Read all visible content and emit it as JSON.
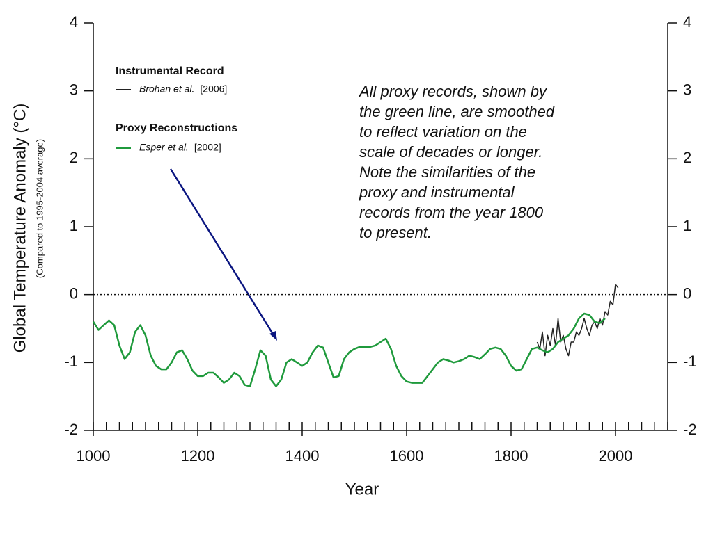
{
  "chart_data": {
    "type": "line",
    "ylabel": "Global Temperature Anomaly (°C)",
    "ylabel_note": "(Compared to 1995-2004 average)",
    "xlabel": "Year",
    "xlim": [
      1000,
      2100
    ],
    "xticks": [
      1000,
      1200,
      1400,
      1600,
      1800,
      2000
    ],
    "xticks_minor": [
      1000,
      1025,
      1050,
      1075,
      1100,
      1125,
      1150,
      1175,
      1200,
      1225,
      1250,
      1275,
      1300,
      1325,
      1350,
      1375,
      1400,
      1425,
      1450,
      1475,
      1500,
      1525,
      1550,
      1575,
      1600,
      1625,
      1650,
      1675,
      1700,
      1725,
      1750,
      1775,
      1800,
      1825,
      1850,
      1875,
      1900,
      1925,
      1950,
      1975,
      2000,
      2025,
      2050,
      2075,
      2100
    ],
    "ylim": [
      -2,
      4
    ],
    "yticks": [
      -2,
      -1,
      0,
      1,
      2,
      3,
      4
    ],
    "y2lim": [
      -2,
      4
    ],
    "y2ticks": [
      -2,
      -1,
      0,
      1,
      2,
      3,
      4
    ],
    "reference_line": 0,
    "legend_groups": [
      "Instrumental Record",
      "Proxy Reconstructions"
    ],
    "annotation": [
      "All proxy records, shown by",
      "the green line, are smoothed",
      "to reflect variation on the",
      "scale of decades or longer.",
      "Note the similarities of the",
      "proxy and instrumental",
      "records from the year 1800",
      "to present."
    ],
    "series": [
      {
        "name": "Brohan et al.",
        "citation": "[2006]",
        "color": "#222222",
        "x": [
          1850,
          1855,
          1860,
          1865,
          1870,
          1875,
          1880,
          1885,
          1890,
          1895,
          1900,
          1905,
          1910,
          1915,
          1920,
          1925,
          1930,
          1935,
          1940,
          1945,
          1950,
          1955,
          1960,
          1965,
          1970,
          1975,
          1980,
          1985,
          1990,
          1995,
          2000,
          2005
        ],
        "values": [
          -0.7,
          -0.8,
          -0.55,
          -0.9,
          -0.6,
          -0.75,
          -0.5,
          -0.75,
          -0.35,
          -0.7,
          -0.6,
          -0.8,
          -0.9,
          -0.7,
          -0.7,
          -0.55,
          -0.6,
          -0.5,
          -0.35,
          -0.5,
          -0.6,
          -0.45,
          -0.4,
          -0.5,
          -0.35,
          -0.45,
          -0.25,
          -0.3,
          -0.1,
          -0.15,
          0.15,
          0.1
        ]
      },
      {
        "name": "Esper et al.",
        "citation": "[2002]",
        "color": "#1f9a3c",
        "x": [
          1000,
          1010,
          1020,
          1030,
          1040,
          1050,
          1060,
          1070,
          1080,
          1090,
          1100,
          1110,
          1120,
          1130,
          1140,
          1150,
          1160,
          1170,
          1180,
          1190,
          1200,
          1210,
          1220,
          1230,
          1240,
          1250,
          1260,
          1270,
          1280,
          1290,
          1300,
          1310,
          1320,
          1330,
          1340,
          1350,
          1360,
          1370,
          1380,
          1390,
          1400,
          1410,
          1420,
          1430,
          1440,
          1450,
          1460,
          1470,
          1480,
          1490,
          1500,
          1510,
          1520,
          1530,
          1540,
          1550,
          1560,
          1570,
          1580,
          1590,
          1600,
          1610,
          1620,
          1630,
          1640,
          1650,
          1660,
          1670,
          1680,
          1690,
          1700,
          1710,
          1720,
          1730,
          1740,
          1750,
          1760,
          1770,
          1780,
          1790,
          1800,
          1810,
          1820,
          1830,
          1840,
          1850,
          1860,
          1870,
          1880,
          1890,
          1900,
          1910,
          1920,
          1930,
          1940,
          1950,
          1960,
          1970,
          1980
        ],
        "values": [
          -0.4,
          -0.52,
          -0.45,
          -0.38,
          -0.45,
          -0.75,
          -0.95,
          -0.85,
          -0.55,
          -0.45,
          -0.6,
          -0.9,
          -1.05,
          -1.1,
          -1.1,
          -1.0,
          -0.85,
          -0.82,
          -0.95,
          -1.12,
          -1.2,
          -1.2,
          -1.15,
          -1.15,
          -1.22,
          -1.3,
          -1.25,
          -1.15,
          -1.2,
          -1.33,
          -1.35,
          -1.1,
          -0.82,
          -0.9,
          -1.25,
          -1.35,
          -1.25,
          -1.0,
          -0.95,
          -1.0,
          -1.05,
          -1.0,
          -0.85,
          -0.75,
          -0.78,
          -1.0,
          -1.22,
          -1.2,
          -0.95,
          -0.85,
          -0.8,
          -0.77,
          -0.77,
          -0.77,
          -0.75,
          -0.7,
          -0.65,
          -0.8,
          -1.05,
          -1.2,
          -1.28,
          -1.3,
          -1.3,
          -1.3,
          -1.2,
          -1.1,
          -1.0,
          -0.95,
          -0.97,
          -1.0,
          -0.98,
          -0.95,
          -0.9,
          -0.92,
          -0.95,
          -0.88,
          -0.8,
          -0.78,
          -0.8,
          -0.9,
          -1.05,
          -1.12,
          -1.1,
          -0.95,
          -0.8,
          -0.78,
          -0.82,
          -0.85,
          -0.8,
          -0.7,
          -0.65,
          -0.6,
          -0.5,
          -0.35,
          -0.28,
          -0.3,
          -0.4,
          -0.42,
          -0.35
        ]
      }
    ]
  }
}
